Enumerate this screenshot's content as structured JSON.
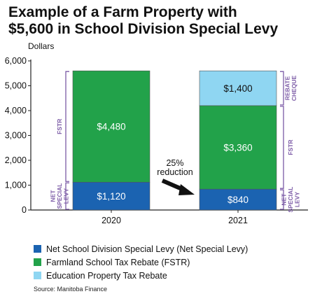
{
  "title": {
    "line1": "Example of a Farm Property with",
    "line2": "$5,600 in School Division Special Levy"
  },
  "y_unit": "Dollars",
  "source": "Source: Manitoba Finance",
  "colors": {
    "net_special_levy": "#1b63b1",
    "fstr": "#22a24a",
    "rebate": "#8fd6f2",
    "bracket": "#7b5aa6"
  },
  "legend": [
    {
      "label": "Net School Division Special Levy (Net Special Levy)",
      "color_key": "net_special_levy"
    },
    {
      "label": "Farmland School Tax Rebate (FSTR)",
      "color_key": "fstr"
    },
    {
      "label": "Education Property Tax Rebate",
      "color_key": "rebate"
    }
  ],
  "annotation": {
    "line1": "25%",
    "line2": "reduction"
  },
  "brackets": [
    {
      "bar": 0,
      "from": 0,
      "to": 1120,
      "lines": [
        "NET",
        "SPECIAL",
        "LEVY"
      ],
      "side": "left"
    },
    {
      "bar": 0,
      "from": 1120,
      "to": 5600,
      "lines": [
        "FSTR"
      ],
      "side": "left"
    },
    {
      "bar": 1,
      "from": 0,
      "to": 840,
      "lines": [
        "NET",
        "SPECIAL",
        "LEVY"
      ],
      "side": "right"
    },
    {
      "bar": 1,
      "from": 840,
      "to": 4200,
      "lines": [
        "FSTR"
      ],
      "side": "right"
    },
    {
      "bar": 1,
      "from": 4200,
      "to": 5600,
      "lines": [
        "REBATE",
        "CHEQUE"
      ],
      "side": "right"
    }
  ],
  "chart_data": {
    "type": "bar",
    "stacked": true,
    "categories": [
      "2020",
      "2021"
    ],
    "series": [
      {
        "name": "Net School Division Special Levy (Net Special Levy)",
        "color_key": "net_special_levy",
        "values": [
          1120,
          840
        ],
        "labels": [
          "$1,120",
          "$840"
        ]
      },
      {
        "name": "Farmland School Tax Rebate (FSTR)",
        "color_key": "fstr",
        "values": [
          4480,
          3360
        ],
        "labels": [
          "$4,480",
          "$3,360"
        ]
      },
      {
        "name": "Education Property Tax Rebate",
        "color_key": "rebate",
        "values": [
          0,
          1400
        ],
        "labels": [
          "",
          "$1,400"
        ]
      }
    ],
    "ylim": [
      0,
      6000
    ],
    "yticks": [
      0,
      1000,
      2000,
      3000,
      4000,
      5000,
      6000
    ],
    "ytick_labels": [
      "0",
      "1,000",
      "2,000",
      "3,000",
      "4,000",
      "5,000",
      "6,000"
    ],
    "ylabel": "Dollars",
    "xlabel": "",
    "grid": false,
    "legend_position": "bottom"
  }
}
